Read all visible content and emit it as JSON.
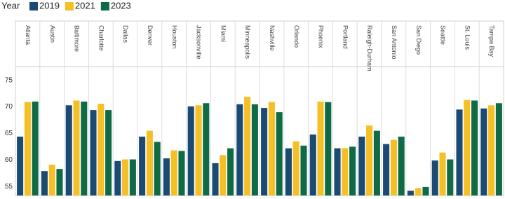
{
  "chart_data": {
    "type": "bar",
    "legend_title": "Year",
    "categories": [
      "Atlanta",
      "Austin",
      "Baltimore",
      "Charlotte",
      "Dallas",
      "Denver",
      "Houston",
      "Jacksonville",
      "Miami",
      "Minneapolis",
      "Nashville",
      "Orlando",
      "Phoenix",
      "Portland",
      "Raleigh-Durham",
      "San Antonio",
      "San Diego",
      "Seattle",
      "St. Louis",
      "Tampa Bay"
    ],
    "series": [
      {
        "name": "2019",
        "color": "#1b4a72",
        "values": [
          64.4,
          57.9,
          70.3,
          69.4,
          59.8,
          64.4,
          60.3,
          70.1,
          59.4,
          70.5,
          69.8,
          62.2,
          64.8,
          62.2,
          64.4,
          63.0,
          54.2,
          59.9,
          69.5,
          69.7
        ]
      },
      {
        "name": "2021",
        "color": "#f5bf26",
        "values": [
          70.9,
          59.1,
          71.2,
          70.6,
          60.1,
          65.5,
          61.8,
          70.3,
          60.9,
          71.9,
          70.9,
          63.5,
          71.0,
          62.2,
          66.5,
          63.8,
          54.7,
          61.4,
          71.3,
          70.3
        ]
      },
      {
        "name": "2023",
        "color": "#0f6b45",
        "values": [
          71.0,
          58.3,
          71.0,
          69.4,
          60.1,
          63.4,
          61.7,
          70.7,
          62.2,
          70.5,
          69.0,
          62.7,
          70.9,
          62.5,
          65.5,
          64.4,
          54.9,
          60.1,
          71.2,
          70.7
        ]
      }
    ],
    "ylim": [
      53.3,
      77.6
    ],
    "yticks": [
      55,
      60,
      65,
      70,
      75
    ],
    "grid": false
  }
}
